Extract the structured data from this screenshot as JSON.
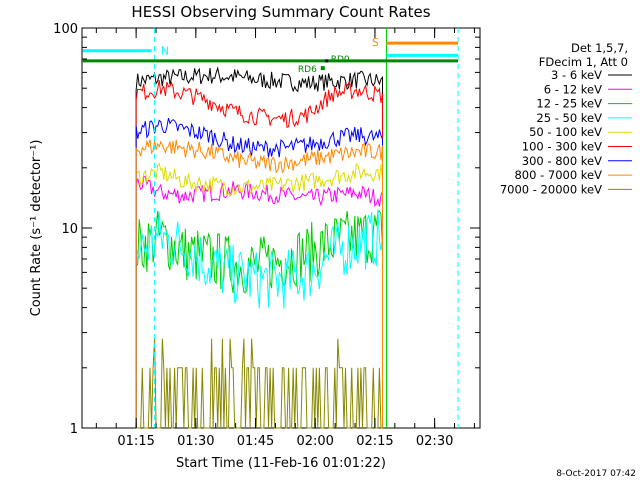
{
  "chart_data": {
    "type": "line",
    "title": "HESSI Observing Summary Count Rates",
    "xlabel": "Start Time (11-Feb-16 01:01:22)",
    "ylabel": "Count Rate (s⁻¹ detector⁻¹)",
    "yscale": "log",
    "ylim": [
      1,
      100
    ],
    "xlim_minutes": [
      0,
      100
    ],
    "x_tick_labels": [
      "01:15",
      "01:30",
      "01:45",
      "02:00",
      "02:15",
      "02:30"
    ],
    "x_tick_minutes": [
      13.6,
      28.6,
      43.6,
      58.6,
      73.6,
      88.6
    ],
    "y_tick_labels": [
      "1",
      "10",
      "100"
    ],
    "y_tick_values": [
      1,
      10,
      100
    ],
    "legend_header": [
      "Det 1,5,7,",
      "FDecim 1, Att 0"
    ],
    "series": [
      {
        "name": "3 - 6 keV",
        "color": "#000000",
        "start": 13.6,
        "end": 75.5,
        "levels": [
          54,
          56,
          57,
          58,
          57,
          55,
          54,
          53,
          54,
          55,
          54
        ]
      },
      {
        "name": "6 - 12 keV",
        "color": "#ff00ff",
        "start": 13.6,
        "end": 75.5,
        "levels": [
          17,
          15,
          14.5,
          15,
          15.5,
          15,
          14.5,
          14,
          14.5,
          15,
          14
        ]
      },
      {
        "name": "12 - 25 keV",
        "color": "#00cc00",
        "start": 13.6,
        "end": 75.5,
        "levels": [
          8,
          9,
          7.5,
          7,
          6.5,
          6.5,
          7,
          7.5,
          8.5,
          9,
          9.5
        ]
      },
      {
        "name": "25 - 50 keV",
        "color": "#00ffff",
        "start": 13.6,
        "end": 75.5,
        "levels": [
          7.5,
          9,
          8,
          6.5,
          5.8,
          5.5,
          5.5,
          6,
          7.5,
          8.5,
          9
        ]
      },
      {
        "name": "50 - 100 keV",
        "color": "#dddd00",
        "start": 13.6,
        "end": 75.5,
        "levels": [
          18,
          19,
          17,
          16.5,
          16,
          16,
          16.5,
          17,
          18,
          19,
          19
        ]
      },
      {
        "name": "100 - 300 keV",
        "color": "#ff0000",
        "start": 13.6,
        "end": 75.5,
        "levels": [
          47,
          50,
          47,
          43,
          38,
          36,
          35,
          37,
          47,
          49,
          46
        ]
      },
      {
        "name": "300 - 800 keV",
        "color": "#0000ff",
        "start": 13.6,
        "end": 75.5,
        "levels": [
          30,
          33,
          31,
          29,
          26,
          25,
          25,
          26,
          28,
          29,
          28
        ]
      },
      {
        "name": "800 - 7000 keV",
        "color": "#ff8800",
        "start": 13.6,
        "end": 75.5,
        "levels": [
          25,
          26,
          25,
          24,
          22,
          21,
          21,
          22,
          23,
          24,
          24
        ]
      },
      {
        "name": "7000 - 20000 keV",
        "color": "#888800",
        "start": 13.6,
        "end": 75.5,
        "levels": [
          1.2,
          1.3,
          1.2,
          1.1,
          1.0,
          1.0,
          1.2,
          1.5,
          1.6,
          1.3,
          1.2
        ]
      }
    ],
    "annotations": [
      {
        "text": "N",
        "color": "#00ffff"
      },
      {
        "text": "S",
        "color": "#ff8800"
      },
      {
        "text": "RD6",
        "color": "#008800"
      },
      {
        "text": "RD0",
        "color": "#008800"
      }
    ],
    "footer": "8-Oct-2017 07:42"
  }
}
